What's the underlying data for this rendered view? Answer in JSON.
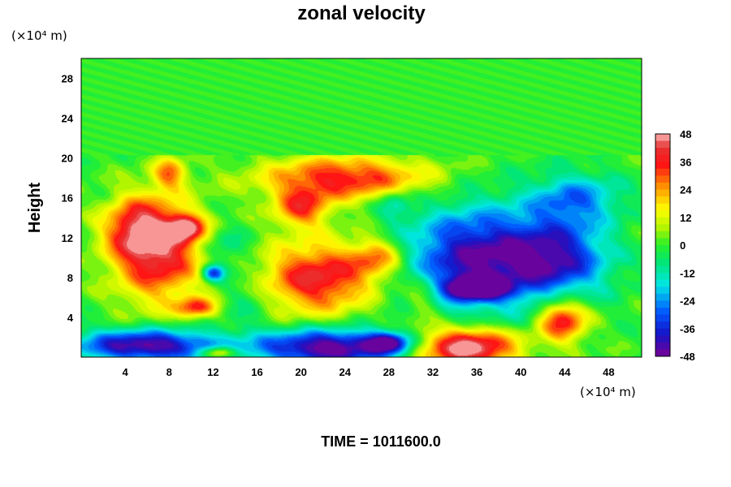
{
  "chart_data": {
    "type": "heatmap",
    "title": "zonal velocity",
    "ylabel": "Height",
    "y_unit": "(×10⁴ m)",
    "x_unit": "(×10⁴ m)",
    "x_ticks": [
      4,
      8,
      12,
      16,
      20,
      24,
      28,
      32,
      36,
      40,
      44,
      48
    ],
    "y_ticks": [
      4,
      8,
      12,
      16,
      20,
      24,
      28
    ],
    "xlim": [
      0,
      51
    ],
    "ylim": [
      0,
      30
    ],
    "colorbar": {
      "ticks": [
        48,
        36,
        24,
        12,
        0,
        -12,
        -24,
        -36,
        -48
      ],
      "range": [
        -48,
        48
      ],
      "levels": 32
    },
    "background_value": 0,
    "features": [
      {
        "x": 7.0,
        "y": 10.5,
        "value": 40,
        "rx": 4.0,
        "ry": 5.0
      },
      {
        "x": 5.0,
        "y": 13.0,
        "value": 28,
        "rx": 3.0,
        "ry": 3.0
      },
      {
        "x": 9.5,
        "y": 13.0,
        "value": 36,
        "rx": 1.6,
        "ry": 1.3
      },
      {
        "x": 21.5,
        "y": 8.0,
        "value": 40,
        "rx": 5.0,
        "ry": 3.5
      },
      {
        "x": 24.0,
        "y": 18.0,
        "value": 36,
        "rx": 7.5,
        "ry": 2.2
      },
      {
        "x": 20.0,
        "y": 15.0,
        "value": 30,
        "rx": 2.5,
        "ry": 2.0
      },
      {
        "x": 10.5,
        "y": 5.0,
        "value": 30,
        "rx": 1.8,
        "ry": 1.0
      },
      {
        "x": 27.0,
        "y": 10.0,
        "value": 24,
        "rx": 2.5,
        "ry": 2.0
      },
      {
        "x": 8.0,
        "y": 18.5,
        "value": 26,
        "rx": 1.5,
        "ry": 1.5
      },
      {
        "x": 35.0,
        "y": 1.0,
        "value": 52,
        "rx": 4.5,
        "ry": 2.0
      },
      {
        "x": 43.8,
        "y": 3.8,
        "value": 40,
        "rx": 2.2,
        "ry": 2.2
      },
      {
        "x": 36.0,
        "y": 10.0,
        "value": -44,
        "rx": 6.5,
        "ry": 5.0
      },
      {
        "x": 43.5,
        "y": 10.0,
        "value": -34,
        "rx": 4.5,
        "ry": 4.0
      },
      {
        "x": 36.0,
        "y": 7.0,
        "value": -50,
        "rx": 2.5,
        "ry": 1.1
      },
      {
        "x": 45.0,
        "y": 16.0,
        "value": -24,
        "rx": 4.0,
        "ry": 2.5
      },
      {
        "x": 6.0,
        "y": 1.2,
        "value": -48,
        "rx": 6.5,
        "ry": 1.6
      },
      {
        "x": 22.5,
        "y": 1.0,
        "value": -50,
        "rx": 6.5,
        "ry": 1.8
      },
      {
        "x": 12.0,
        "y": 8.5,
        "value": -36,
        "rx": 1.0,
        "ry": 0.8
      },
      {
        "x": 15.0,
        "y": 6.0,
        "value": -8,
        "rx": 2.5,
        "ry": 3.0
      },
      {
        "x": 28.0,
        "y": 1.5,
        "value": -36,
        "rx": 2.0,
        "ry": 1.0
      },
      {
        "x": 13.0,
        "y": 11.0,
        "value": -12,
        "rx": 2.0,
        "ry": 2.0
      },
      {
        "x": 28.5,
        "y": 15.5,
        "value": -14,
        "rx": 1.5,
        "ry": 1.5
      },
      {
        "x": 31.0,
        "y": 6.0,
        "value": 14,
        "rx": 1.6,
        "ry": 2.5
      },
      {
        "x": 12.5,
        "y": 0.5,
        "value": 32,
        "rx": 1.5,
        "ry": 0.6
      }
    ]
  },
  "footer": {
    "time_label": "TIME = 1011600.0"
  }
}
